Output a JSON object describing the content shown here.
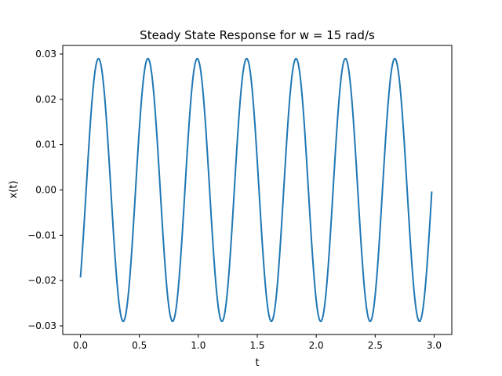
{
  "chart_data": {
    "type": "line",
    "title": "Steady State Response for w = 15 rad/s",
    "xlabel": "t",
    "ylabel": "x(t)",
    "xlim": [
      -0.15,
      3.15
    ],
    "ylim": [
      -0.0319,
      0.0319
    ],
    "grid": false,
    "xticks": [
      0.0,
      0.5,
      1.0,
      1.5,
      2.0,
      2.5,
      3.0
    ],
    "xtick_labels": [
      "0.0",
      "0.5",
      "1.0",
      "1.5",
      "2.0",
      "2.5",
      "3.0"
    ],
    "yticks": [
      -0.03,
      -0.02,
      -0.01,
      0.0,
      0.01,
      0.02,
      0.03
    ],
    "ytick_labels": [
      "−0.03",
      "−0.02",
      "−0.01",
      "0.00",
      "0.01",
      "0.02",
      "0.03"
    ],
    "series": [
      {
        "color": "#1f77b4",
        "function": {
          "amplitude": 0.029,
          "omega": 15,
          "phase": -2.3,
          "t_start": 0,
          "t_end": 2.98
        }
      }
    ]
  }
}
